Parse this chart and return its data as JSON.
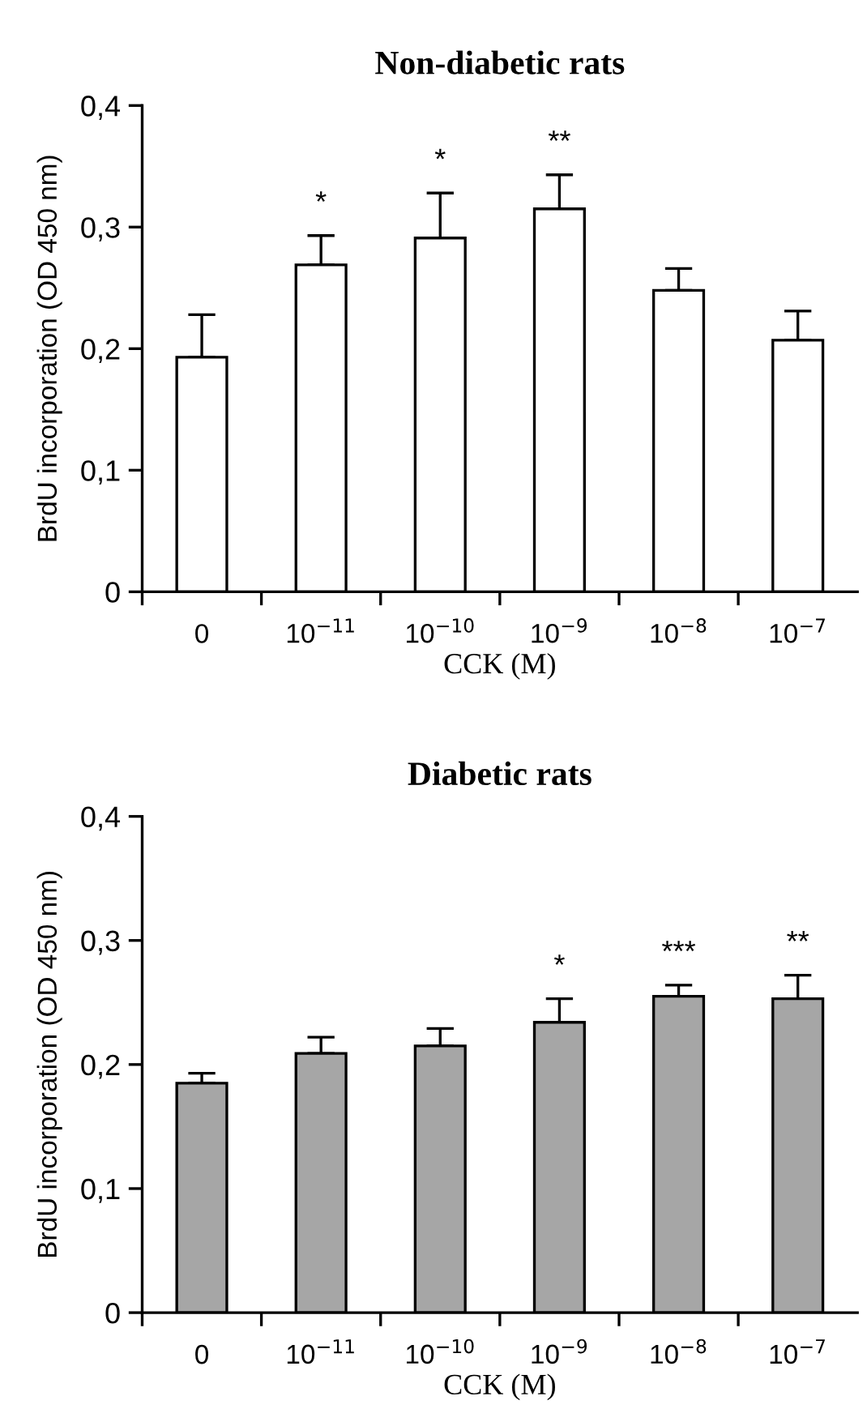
{
  "chart_data": [
    {
      "type": "bar",
      "title": "Non-diabetic rats",
      "xlabel": "CCK (M)",
      "ylabel": "BrdU incorporation (OD 450 nm)",
      "categories": [
        "0",
        "10$^{−11}$",
        "10$^{−10}$",
        "10$^{−9}$",
        "10$^{−8}$",
        "10$^{−7}$"
      ],
      "values": [
        0.193,
        0.269,
        0.291,
        0.315,
        0.248,
        0.207
      ],
      "errors": [
        [
          0.193,
          0.228
        ],
        [
          0.269,
          0.293
        ],
        [
          0.291,
          0.328
        ],
        [
          0.315,
          0.343
        ],
        [
          0.248,
          0.266
        ],
        [
          0.207,
          0.231
        ]
      ],
      "color": "#ffffff",
      "ylim": [
        0,
        0.4
      ],
      "yticks": [
        0,
        {
          "value": 0.1,
          "label": "0,1"
        },
        {
          "value": 0.2,
          "label": "0,2"
        },
        {
          "value": 0.3,
          "label": "0,3"
        },
        {
          "value": 0.4,
          "label": "0,4"
        }
      ],
      "annotations": [
        {
          "text": "*",
          "x": "10$^{−11}$",
          "y": 0.293
        },
        {
          "text": "*",
          "x": "10$^{−10}$",
          "y": 0.328
        },
        {
          "text": "**",
          "x": "10$^{−9}$",
          "y": 0.343
        }
      ],
      "grid": false
    },
    {
      "type": "bar",
      "title": "Diabetic rats",
      "xlabel": "CCK (M)",
      "ylabel": "BrdU incorporation (OD 450 nm)",
      "categories": [
        "0",
        "10$^{−11}$",
        "10$^{−10}$",
        "10$^{−9}$",
        "10$^{−8}$",
        "10$^{−7}$"
      ],
      "values": [
        0.185,
        0.209,
        0.215,
        0.234,
        0.255,
        0.253
      ],
      "errors": [
        [
          0.185,
          0.193
        ],
        [
          0.209,
          0.222
        ],
        [
          0.215,
          0.229
        ],
        [
          0.234,
          0.253
        ],
        [
          0.255,
          0.264
        ],
        [
          0.253,
          0.272
        ]
      ],
      "color": "#a6a6a6",
      "ylim": [
        0,
        0.4
      ],
      "yticks": [
        0,
        {
          "value": 0.1,
          "label": "0,1"
        },
        {
          "value": 0.2,
          "label": "0,2"
        },
        {
          "value": 0.3,
          "label": "0,3"
        },
        {
          "value": 0.4,
          "label": "0,4"
        }
      ],
      "annotations": [
        {
          "text": "*",
          "x": "10$^{−9}$",
          "y": 0.253
        },
        {
          "text": "***",
          "x": "10$^{−8}$",
          "y": 0.264
        },
        {
          "text": "**",
          "x": "10$^{−7}$",
          "y": 0.272
        }
      ],
      "grid": false
    }
  ]
}
